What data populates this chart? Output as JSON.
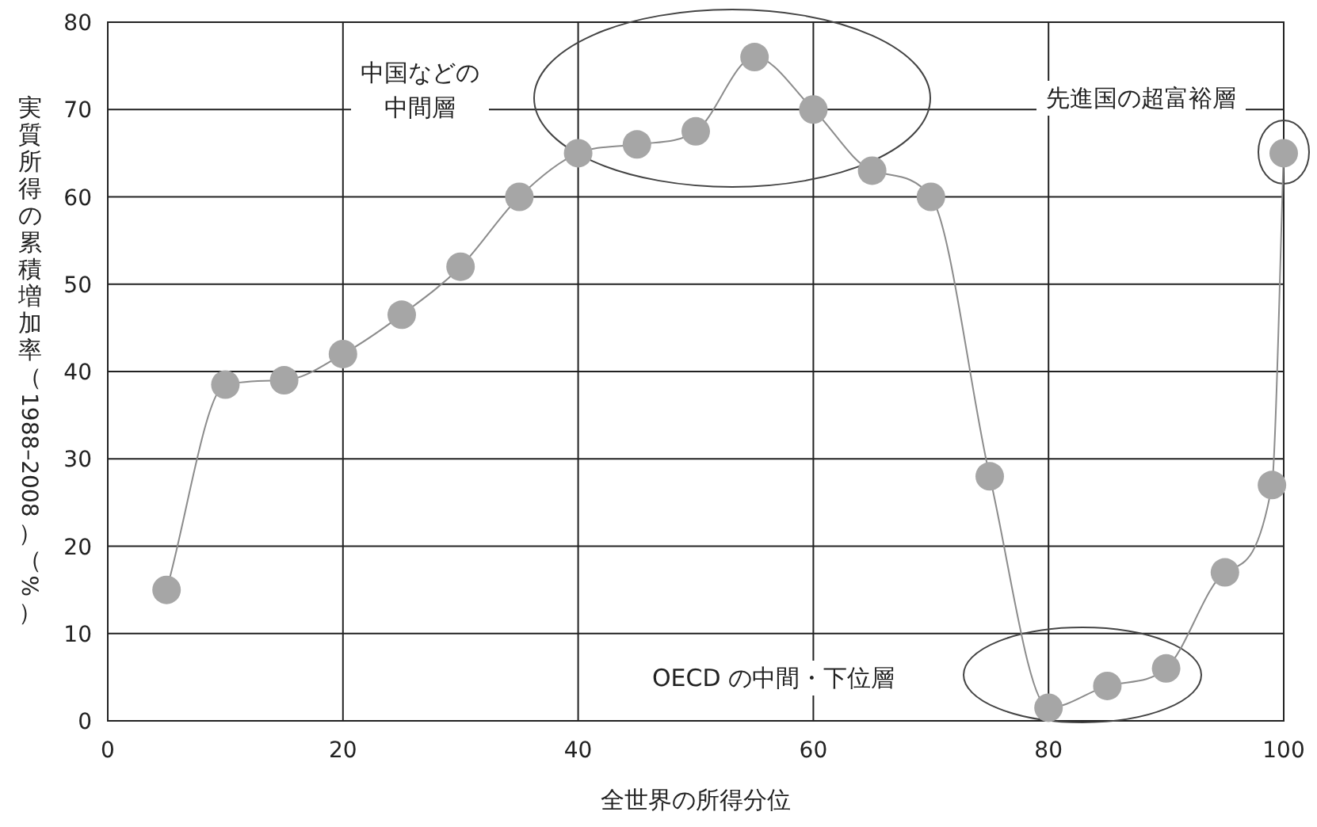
{
  "chart_data": {
    "type": "line",
    "xlabel": "全世界の所得分位",
    "ylabel": "実質所得の累積増加率（1988–2008）（%）",
    "x": [
      5,
      10,
      15,
      20,
      25,
      30,
      35,
      40,
      45,
      50,
      55,
      60,
      65,
      70,
      75,
      80,
      85,
      90,
      95,
      99,
      100
    ],
    "series": [
      {
        "color": "#a6a6a6",
        "values": [
          15,
          38.5,
          39,
          42,
          46.5,
          52,
          60,
          65,
          66,
          67.5,
          76,
          70,
          63,
          60,
          28,
          1.5,
          4,
          6,
          17,
          27,
          65
        ]
      }
    ],
    "xlim": [
      0,
      100
    ],
    "xticks": [
      0,
      20,
      40,
      60,
      80,
      100
    ],
    "ylim": [
      0,
      80
    ],
    "yticks": [
      0,
      10,
      20,
      30,
      40,
      50,
      60,
      70,
      80
    ],
    "grid": true,
    "marker": "circle",
    "line_style": "solid",
    "annotations": [
      "中国などの中間層",
      "OECD の中間・下位層",
      "先進国の超富裕層"
    ]
  }
}
